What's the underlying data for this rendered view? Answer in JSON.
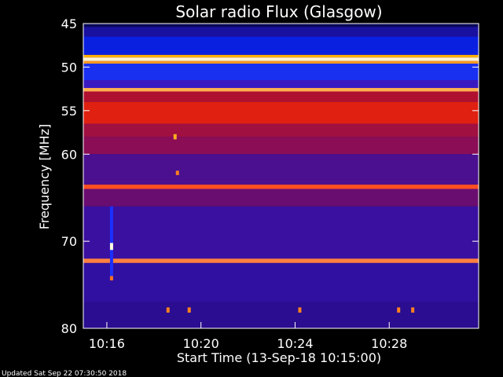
{
  "chart_data": {
    "type": "heatmap",
    "title": "Solar radio Flux (Glasgow)",
    "xlabel": "Start Time (13-Sep-18 10:15:00)",
    "ylabel": "Frequency [MHz]",
    "x_range_minutes": [
      0,
      16.8
    ],
    "y_range_mhz": [
      45,
      80
    ],
    "y_inverted": true,
    "x_ticks": [
      {
        "label": "10:16",
        "minute": 1
      },
      {
        "label": "10:20",
        "minute": 5
      },
      {
        "label": "10:24",
        "minute": 9
      },
      {
        "label": "10:28",
        "minute": 13
      }
    ],
    "y_ticks": [
      {
        "label": "45",
        "mhz": 45
      },
      {
        "label": "50",
        "mhz": 50
      },
      {
        "label": "55",
        "mhz": 55
      },
      {
        "label": "60",
        "mhz": 60
      },
      {
        "label": "70",
        "mhz": 70
      },
      {
        "label": "80",
        "mhz": 80
      }
    ],
    "background_color": "#2a0f7a",
    "frequency_bands": [
      {
        "from": 45.0,
        "to": 45.4,
        "color": "#0a0a5a"
      },
      {
        "from": 45.4,
        "to": 46.5,
        "color": "#1a10a0"
      },
      {
        "from": 46.5,
        "to": 48.6,
        "color": "#0a20e0"
      },
      {
        "from": 48.6,
        "to": 48.9,
        "color": "#ffb000"
      },
      {
        "from": 48.9,
        "to": 49.3,
        "color": "#fff4d0"
      },
      {
        "from": 49.3,
        "to": 49.6,
        "color": "#ff9a20"
      },
      {
        "from": 49.6,
        "to": 51.5,
        "color": "#1a30f0"
      },
      {
        "from": 51.5,
        "to": 52.4,
        "color": "#3a1ac0"
      },
      {
        "from": 52.4,
        "to": 52.8,
        "color": "#ffb050"
      },
      {
        "from": 52.8,
        "to": 54.0,
        "color": "#b01030"
      },
      {
        "from": 54.0,
        "to": 56.5,
        "color": "#e02010"
      },
      {
        "from": 56.5,
        "to": 58.0,
        "color": "#a01040"
      },
      {
        "from": 58.0,
        "to": 60.0,
        "color": "#8a0d55"
      },
      {
        "from": 60.0,
        "to": 63.5,
        "color": "#4a1090"
      },
      {
        "from": 63.5,
        "to": 64.0,
        "color": "#ff5020"
      },
      {
        "from": 64.0,
        "to": 66.0,
        "color": "#6a0d70"
      },
      {
        "from": 66.0,
        "to": 72.0,
        "color": "#3a10a0"
      },
      {
        "from": 72.0,
        "to": 72.5,
        "color": "#ff8040"
      },
      {
        "from": 72.5,
        "to": 77.0,
        "color": "#3010a0"
      },
      {
        "from": 77.0,
        "to": 80.0,
        "color": "#2a0d90"
      }
    ],
    "features": [
      {
        "minute": 1.2,
        "from_mhz": 66.0,
        "to_mhz": 74.5,
        "color": "#1a30ff"
      },
      {
        "minute": 1.2,
        "from_mhz": 70.2,
        "to_mhz": 71.0,
        "color": "#fffce0"
      },
      {
        "minute": 1.2,
        "from_mhz": 74.0,
        "to_mhz": 74.5,
        "color": "#ff7020"
      },
      {
        "minute": 3.9,
        "from_mhz": 57.7,
        "to_mhz": 58.3,
        "color": "#ffb020"
      },
      {
        "minute": 4.0,
        "from_mhz": 61.9,
        "to_mhz": 62.4,
        "color": "#ff8020"
      },
      {
        "minute": 3.6,
        "from_mhz": 77.6,
        "to_mhz": 78.2,
        "color": "#ff8020"
      },
      {
        "minute": 4.5,
        "from_mhz": 77.6,
        "to_mhz": 78.2,
        "color": "#ff8020"
      },
      {
        "minute": 9.2,
        "from_mhz": 77.6,
        "to_mhz": 78.2,
        "color": "#ff8020"
      },
      {
        "minute": 13.4,
        "from_mhz": 77.6,
        "to_mhz": 78.2,
        "color": "#ff8020"
      },
      {
        "minute": 14.0,
        "from_mhz": 77.6,
        "to_mhz": 78.2,
        "color": "#ff8020"
      }
    ]
  },
  "footer": {
    "updated": "Updated Sat Sep 22 07:30:50 2018"
  }
}
